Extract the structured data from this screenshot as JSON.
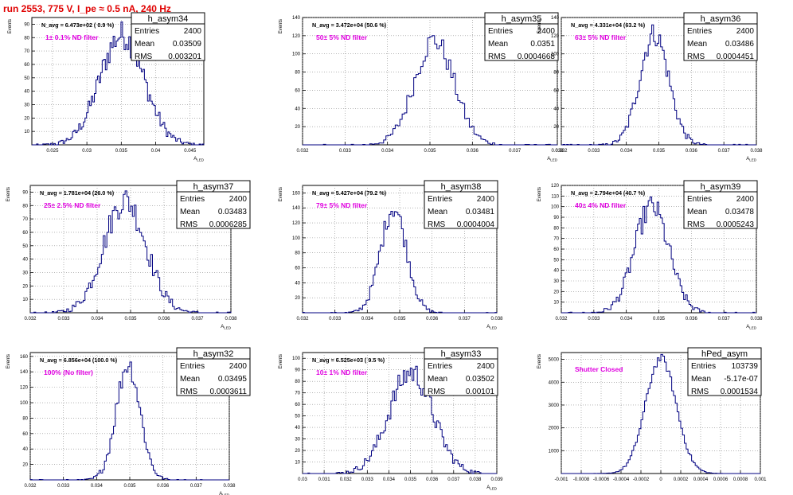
{
  "run_title": "run 2553,   775 V, I_pe ≈ 0.5 nA, 240 Hz",
  "colors": {
    "hist_line": "#000080",
    "filter_label": "#e000e0",
    "title": "#e00000",
    "grid": "#888888"
  },
  "chart_data": [
    {
      "type": "histogram",
      "name": "h_asym34",
      "entries": "2400",
      "mean": "0.03509",
      "rms": "0.003201",
      "navg": "N_avg = 6.473e+02 ( 0.9 %)",
      "filter": "1± 0.1% ND filter",
      "xlabel": "A_LED",
      "ylabel": "Events",
      "xlim": [
        0.022,
        0.047
      ],
      "ylim": [
        0,
        95
      ],
      "x_ticks": [
        "0.025",
        "0.03",
        "0.035",
        "0.04",
        "0.045"
      ],
      "x_tick_values": [
        0.025,
        0.03,
        0.035,
        0.04,
        0.045
      ],
      "y_ticks": [
        "10",
        "20",
        "30",
        "40",
        "50",
        "60",
        "70",
        "80",
        "90"
      ],
      "y_tick_values": [
        10,
        20,
        30,
        40,
        50,
        60,
        70,
        80,
        90
      ],
      "dist": {
        "mu": 0.03509,
        "sigma": 0.003201,
        "peak": 82
      }
    },
    {
      "type": "histogram",
      "name": "h_asym35",
      "entries": "2400",
      "mean": "0.0351",
      "rms": "0.0004668",
      "navg": "N_avg = 3.472e+04 (50.6 %)",
      "filter": "50± 5% ND filter",
      "xlabel": "A_LED",
      "ylabel": "Events",
      "xlim": [
        0.032,
        0.038
      ],
      "ylim": [
        0,
        140
      ],
      "x_ticks": [
        "0.032",
        "0.033",
        "0.034",
        "0.035",
        "0.036",
        "0.037",
        "0.038"
      ],
      "x_tick_values": [
        0.032,
        0.033,
        0.034,
        0.035,
        0.036,
        0.037,
        0.038
      ],
      "y_ticks": [
        "20",
        "40",
        "60",
        "80",
        "100",
        "120",
        "140"
      ],
      "y_tick_values": [
        20,
        40,
        60,
        80,
        100,
        120,
        140
      ],
      "dist": {
        "mu": 0.0351,
        "sigma": 0.0004668,
        "peak": 115
      }
    },
    {
      "type": "histogram",
      "name": "h_asym36",
      "entries": "2400",
      "mean": "0.03486",
      "rms": "0.0004451",
      "navg": "N_avg = 4.331e+04 (63.2 %)",
      "filter": "63± 5% ND filter",
      "xlabel": "A_LED",
      "ylabel": "Events",
      "xlim": [
        0.032,
        0.038
      ],
      "ylim": [
        0,
        140
      ],
      "x_ticks": [
        "0.032",
        "0.033",
        "0.034",
        "0.035",
        "0.036",
        "0.037",
        "0.038"
      ],
      "x_tick_values": [
        0.032,
        0.033,
        0.034,
        0.035,
        0.036,
        0.037,
        0.038
      ],
      "y_ticks": [
        "20",
        "40",
        "60",
        "80",
        "100",
        "120",
        "140"
      ],
      "y_tick_values": [
        20,
        40,
        60,
        80,
        100,
        120,
        140
      ],
      "dist": {
        "mu": 0.03486,
        "sigma": 0.0004451,
        "peak": 122
      }
    },
    {
      "type": "histogram",
      "name": "h_asym37",
      "entries": "2400",
      "mean": "0.03483",
      "rms": "0.0006285",
      "navg": "N_avg = 1.781e+04 (26.0 %)",
      "filter": "25± 2.5% ND filter",
      "xlabel": "A_LED",
      "ylabel": "Events",
      "xlim": [
        0.032,
        0.038
      ],
      "ylim": [
        0,
        95
      ],
      "x_ticks": [
        "0.032",
        "0.033",
        "0.034",
        "0.035",
        "0.036",
        "0.037",
        "0.038"
      ],
      "x_tick_values": [
        0.032,
        0.033,
        0.034,
        0.035,
        0.036,
        0.037,
        0.038
      ],
      "y_ticks": [
        "10",
        "20",
        "30",
        "40",
        "50",
        "60",
        "70",
        "80",
        "90"
      ],
      "y_tick_values": [
        10,
        20,
        30,
        40,
        50,
        60,
        70,
        80,
        90
      ],
      "dist": {
        "mu": 0.03483,
        "sigma": 0.0006285,
        "peak": 84
      }
    },
    {
      "type": "histogram",
      "name": "h_asym38",
      "entries": "2400",
      "mean": "0.03481",
      "rms": "0.0004004",
      "navg": "N_avg = 5.427e+04 (79.2 %)",
      "filter": "79± 5% ND filter",
      "xlabel": "A_LED",
      "ylabel": "Events",
      "xlim": [
        0.032,
        0.038
      ],
      "ylim": [
        0,
        170
      ],
      "x_ticks": [
        "0.032",
        "0.033",
        "0.034",
        "0.035",
        "0.036",
        "0.037",
        "0.038"
      ],
      "x_tick_values": [
        0.032,
        0.033,
        0.034,
        0.035,
        0.036,
        0.037,
        0.038
      ],
      "y_ticks": [
        "20",
        "40",
        "60",
        "80",
        "100",
        "120",
        "140",
        "160"
      ],
      "y_tick_values": [
        20,
        40,
        60,
        80,
        100,
        120,
        140,
        160
      ],
      "dist": {
        "mu": 0.03481,
        "sigma": 0.0004004,
        "peak": 140
      }
    },
    {
      "type": "histogram",
      "name": "h_asym39",
      "entries": "2400",
      "mean": "0.03478",
      "rms": "0.0005243",
      "navg": "N_avg = 2.794e+04 (40.7 %)",
      "filter": "40± 4% ND filter",
      "xlabel": "A_LED",
      "ylabel": "Events",
      "xlim": [
        0.032,
        0.038
      ],
      "ylim": [
        0,
        120
      ],
      "x_ticks": [
        "0.032",
        "0.033",
        "0.034",
        "0.035",
        "0.036",
        "0.037",
        "0.038"
      ],
      "x_tick_values": [
        0.032,
        0.033,
        0.034,
        0.035,
        0.036,
        0.037,
        0.038
      ],
      "y_ticks": [
        "10",
        "20",
        "30",
        "40",
        "50",
        "60",
        "70",
        "80",
        "90",
        "100",
        "110",
        "120"
      ],
      "y_tick_values": [
        10,
        20,
        30,
        40,
        50,
        60,
        70,
        80,
        90,
        100,
        110,
        120
      ],
      "dist": {
        "mu": 0.03478,
        "sigma": 0.0005243,
        "peak": 100
      }
    },
    {
      "type": "histogram",
      "name": "h_asym32",
      "entries": "2400",
      "mean": "0.03495",
      "rms": "0.0003611",
      "navg": "N_avg = 6.856e+04 (100.0 %)",
      "filter": "100% (No filter)",
      "xlabel": "A_LED",
      "ylabel": "Events",
      "xlim": [
        0.032,
        0.038
      ],
      "ylim": [
        0,
        165
      ],
      "x_ticks": [
        "0.032",
        "0.033",
        "0.034",
        "0.035",
        "0.036",
        "0.037",
        "0.038"
      ],
      "x_tick_values": [
        0.032,
        0.033,
        0.034,
        0.035,
        0.036,
        0.037,
        0.038
      ],
      "y_ticks": [
        "20",
        "40",
        "60",
        "80",
        "100",
        "120",
        "140",
        "160"
      ],
      "y_tick_values": [
        20,
        40,
        60,
        80,
        100,
        120,
        140,
        160
      ],
      "dist": {
        "mu": 0.03495,
        "sigma": 0.0003611,
        "peak": 150
      }
    },
    {
      "type": "histogram",
      "name": "h_asym33",
      "entries": "2400",
      "mean": "0.03502",
      "rms": "0.00101",
      "navg": "N_avg = 6.525e+03 ( 9.5 %)",
      "filter": "10± 1% ND filter",
      "xlabel": "A_LED",
      "ylabel": "Events",
      "xlim": [
        0.03,
        0.039
      ],
      "ylim": [
        0,
        105
      ],
      "x_ticks": [
        "0.03",
        "0.031",
        "0.032",
        "0.033",
        "0.034",
        "0.035",
        "0.036",
        "0.037",
        "0.038",
        "0.039"
      ],
      "x_tick_values": [
        0.03,
        0.031,
        0.032,
        0.033,
        0.034,
        0.035,
        0.036,
        0.037,
        0.038,
        0.039
      ],
      "y_ticks": [
        "10",
        "20",
        "30",
        "40",
        "50",
        "60",
        "70",
        "80",
        "90",
        "100"
      ],
      "y_tick_values": [
        10,
        20,
        30,
        40,
        50,
        60,
        70,
        80,
        90,
        100
      ],
      "dist": {
        "mu": 0.03502,
        "sigma": 0.00101,
        "peak": 88
      }
    },
    {
      "type": "histogram",
      "name": "hPed_asym",
      "entries": "103739",
      "mean": "-5.17e-07",
      "rms": "0.0001534",
      "navg": "",
      "filter": "Shutter Closed",
      "xlabel": "",
      "ylabel": "Events",
      "xlim": [
        -0.001,
        0.001
      ],
      "ylim": [
        0,
        5300
      ],
      "x_ticks": [
        "-0.001",
        "-0.0008",
        "-0.0006",
        "-0.0004",
        "-0.0002",
        "0",
        "0.0002",
        "0.0004",
        "0.0006",
        "0.0008",
        "0.001"
      ],
      "x_tick_values": [
        -0.001,
        -0.0008,
        -0.0006,
        -0.0004,
        -0.0002,
        0,
        0.0002,
        0.0004,
        0.0006,
        0.0008,
        0.001
      ],
      "y_ticks": [
        "1000",
        "2000",
        "3000",
        "4000",
        "5000"
      ],
      "y_tick_values": [
        1000,
        2000,
        3000,
        4000,
        5000
      ],
      "dist": {
        "mu": 0.0,
        "sigma": 0.0001534,
        "peak": 5050
      }
    }
  ]
}
